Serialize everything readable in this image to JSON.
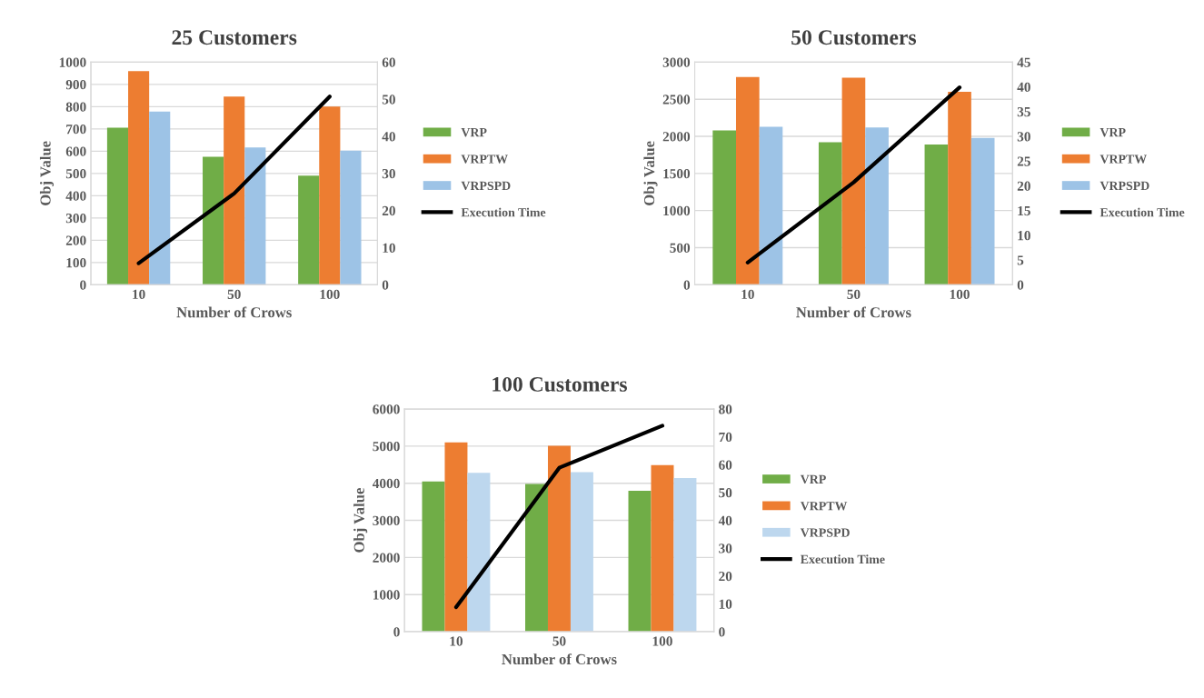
{
  "chart_data": [
    {
      "type": "bar",
      "title": "25 Customers",
      "xlabel": "Number of Crows",
      "ylabel": "Obj Value",
      "categories": [
        "10",
        "50",
        "100"
      ],
      "ylim": [
        0,
        1000
      ],
      "yticks": [
        0,
        100,
        200,
        300,
        400,
        500,
        600,
        700,
        800,
        900,
        1000
      ],
      "y2lim": [
        0,
        60
      ],
      "y2ticks": [
        0,
        10,
        20,
        30,
        40,
        50,
        60
      ],
      "grid": "y",
      "legend": "right",
      "series": [
        {
          "name": "VRP",
          "color": "#70ad47",
          "values": [
            705,
            575,
            490
          ]
        },
        {
          "name": "VRPTW",
          "color": "#ed7d31",
          "values": [
            960,
            845,
            800
          ]
        },
        {
          "name": "VRPSPD",
          "color": "#9dc3e6",
          "values": [
            778,
            617,
            602
          ]
        },
        {
          "name": "Execution Time",
          "type": "line",
          "axis": "y2",
          "color": "#000000",
          "values": [
            5.8,
            24.6,
            50.7
          ]
        }
      ]
    },
    {
      "type": "bar",
      "title": "50 Customers",
      "xlabel": "Number of Crows",
      "ylabel": "Obj Value",
      "categories": [
        "10",
        "50",
        "100"
      ],
      "ylim": [
        0,
        3000
      ],
      "yticks": [
        0,
        500,
        1000,
        1500,
        2000,
        2500,
        3000
      ],
      "y2lim": [
        0,
        45
      ],
      "y2ticks": [
        0,
        5,
        10,
        15,
        20,
        25,
        30,
        35,
        40,
        45
      ],
      "grid": "y",
      "legend": "right",
      "series": [
        {
          "name": "VRP",
          "color": "#70ad47",
          "values": [
            2080,
            1920,
            1890
          ]
        },
        {
          "name": "VRPTW",
          "color": "#ed7d31",
          "values": [
            2800,
            2790,
            2600
          ]
        },
        {
          "name": "VRPSPD",
          "color": "#9dc3e6",
          "values": [
            2130,
            2120,
            1980
          ]
        },
        {
          "name": "Execution Time",
          "type": "line",
          "axis": "y2",
          "color": "#000000",
          "values": [
            4.5,
            20.7,
            39.9
          ]
        }
      ]
    },
    {
      "type": "bar",
      "title": "100 Customers",
      "xlabel": "Number of Crows",
      "ylabel": "Obj Value",
      "categories": [
        "10",
        "50",
        "100"
      ],
      "ylim": [
        0,
        6000
      ],
      "yticks": [
        0,
        1000,
        2000,
        3000,
        4000,
        5000,
        6000
      ],
      "y2lim": [
        0,
        80
      ],
      "y2ticks": [
        0,
        10,
        20,
        30,
        40,
        50,
        60,
        70,
        80
      ],
      "grid": "y",
      "legend": "right",
      "series": [
        {
          "name": "VRP",
          "color": "#70ad47",
          "values": [
            4050,
            3980,
            3800
          ]
        },
        {
          "name": "VRPTW",
          "color": "#ed7d31",
          "values": [
            5100,
            5010,
            4490
          ]
        },
        {
          "name": "VRPSPD",
          "color": "#bdd7ee",
          "values": [
            4280,
            4300,
            4140
          ]
        },
        {
          "name": "Execution Time",
          "type": "line",
          "axis": "y2",
          "color": "#000000",
          "values": [
            8.8,
            58.9,
            74
          ]
        }
      ]
    }
  ]
}
